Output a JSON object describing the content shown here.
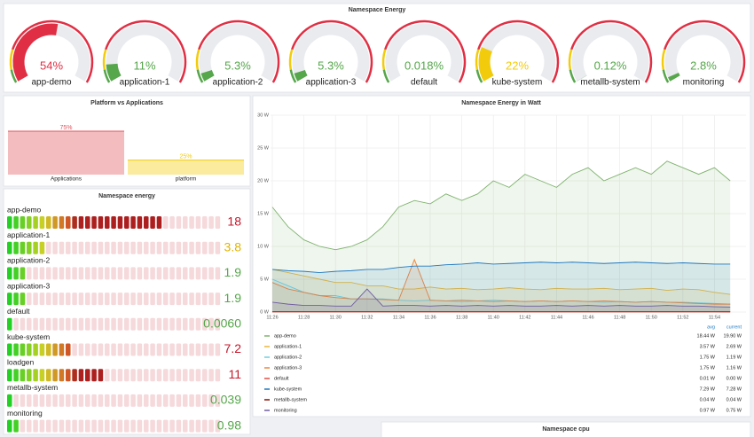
{
  "chart_data": [
    {
      "type": "gauge",
      "title": "Namespace Energy",
      "categories": [
        "app-demo",
        "application-1",
        "application-2",
        "application-3",
        "default",
        "kube-system",
        "metallb-system",
        "monitoring"
      ],
      "values": [
        54,
        11,
        5.3,
        5.3,
        0.018,
        22,
        0.12,
        2.8
      ],
      "value_labels": [
        "54%",
        "11%",
        "5.3%",
        "5.3%",
        "0.018%",
        "22%",
        "0.12%",
        "2.8%"
      ],
      "colors": [
        "#e02f44",
        "#56a64b",
        "#56a64b",
        "#56a64b",
        "#56a64b",
        "#f2cc0c",
        "#56a64b",
        "#56a64b"
      ],
      "ylim": [
        0,
        100
      ]
    },
    {
      "type": "bar",
      "title": "Platform vs Applications",
      "categories": [
        "Applications",
        "platform"
      ],
      "values": [
        75,
        25
      ],
      "value_labels": [
        "75%",
        "25%"
      ],
      "colors": [
        "#e0575f",
        "#f2cc0c"
      ],
      "ylim": [
        0,
        100
      ]
    },
    {
      "type": "bargauge",
      "title": "Namespace energy",
      "categories": [
        "app-demo",
        "application-1",
        "application-2",
        "application-3",
        "default",
        "kube-system",
        "loadgen",
        "metallb-system",
        "monitoring"
      ],
      "values": [
        18,
        3.8,
        1.9,
        1.9,
        0.006,
        7.2,
        11,
        0.039,
        0.98
      ],
      "value_labels": [
        "18",
        "3.8",
        "1.9",
        "1.9",
        "0.0060",
        "7.2",
        "11",
        "0.039",
        "0.98"
      ],
      "colors": [
        "#c4162a",
        "#e0b400",
        "#56a64b",
        "#56a64b",
        "#56a64b",
        "#c4162a",
        "#c4162a",
        "#56a64b",
        "#56a64b"
      ],
      "ylim": [
        0,
        25
      ]
    },
    {
      "type": "line",
      "title": "Namespace Energy in Watt",
      "x": [
        "11:26",
        "11:27",
        "11:28",
        "11:29",
        "11:30",
        "11:31",
        "11:32",
        "11:33",
        "11:34",
        "11:35",
        "11:36",
        "11:37",
        "11:38",
        "11:39",
        "11:40",
        "11:41",
        "11:42",
        "11:43",
        "11:44",
        "11:45",
        "11:46",
        "11:47",
        "11:48",
        "11:49",
        "11:50",
        "11:51",
        "11:52",
        "11:53",
        "11:54",
        "11:55"
      ],
      "xlim": [
        "11:26",
        "11:56"
      ],
      "xticks": [
        "11:26",
        "11:28",
        "11:30",
        "11:32",
        "11:34",
        "11:36",
        "11:38",
        "11:40",
        "11:42",
        "11:44",
        "11:46",
        "11:48",
        "11:50",
        "11:52",
        "11:54"
      ],
      "ylim": [
        0,
        30
      ],
      "yticks": [
        {
          "value": 0,
          "label": "0 W"
        },
        {
          "value": 5,
          "label": "5 W"
        },
        {
          "value": 10,
          "label": "10 W"
        },
        {
          "value": 15,
          "label": "15 W"
        },
        {
          "value": 20,
          "label": "20 W"
        },
        {
          "value": 25,
          "label": "25 W"
        },
        {
          "value": 30,
          "label": "30 W"
        }
      ],
      "grid": true,
      "legend_columns": [
        "avg",
        "current"
      ],
      "series": [
        {
          "name": "app-demo",
          "color": "#7eb26d",
          "stats": [
            "18.44 W",
            "19.90 W"
          ],
          "values": [
            16,
            13,
            11,
            10,
            9.5,
            10,
            11,
            13,
            16,
            17,
            16.5,
            18,
            17,
            18,
            20,
            19,
            21,
            20,
            19,
            21,
            22,
            20,
            21,
            22,
            21,
            23,
            22,
            21,
            22,
            20
          ]
        },
        {
          "name": "application-1",
          "color": "#eab839",
          "stats": [
            "3.57 W",
            "2.69 W"
          ],
          "values": [
            6.5,
            6,
            5.5,
            5,
            4.5,
            4.5,
            4,
            4,
            3.5,
            3.5,
            3.8,
            3.5,
            3.6,
            3.4,
            3.5,
            3.7,
            3.5,
            3.4,
            3.6,
            3.5,
            3.5,
            3.6,
            3.4,
            3.5,
            3.6,
            3.3,
            3.5,
            3.4,
            3,
            2.7
          ]
        },
        {
          "name": "application-2",
          "color": "#6ed0e0",
          "stats": [
            "1.75 W",
            "1.19 W"
          ],
          "values": [
            5,
            4,
            3,
            2.5,
            2.5,
            2,
            2,
            2,
            1.8,
            1.7,
            1.8,
            1.7,
            1.6,
            1.7,
            1.8,
            1.7,
            1.6,
            1.7,
            1.6,
            1.7,
            1.6,
            1.5,
            1.6,
            1.5,
            1.6,
            1.5,
            1.5,
            1.4,
            1.3,
            1.2
          ]
        },
        {
          "name": "application-3",
          "color": "#ef843c",
          "stats": [
            "1.75 W",
            "1.16 W"
          ],
          "values": [
            4.5,
            3.5,
            3,
            2.5,
            2.2,
            2,
            2,
            1.9,
            1.8,
            8,
            1.8,
            1.7,
            1.8,
            1.7,
            1.6,
            1.7,
            1.6,
            1.7,
            1.6,
            1.7,
            1.6,
            1.7,
            1.6,
            1.5,
            1.6,
            1.5,
            1.4,
            1.3,
            1.2,
            1.2
          ]
        },
        {
          "name": "default",
          "color": "#e24d42",
          "stats": [
            "0.01 W",
            "0.00 W"
          ],
          "values": [
            0.01,
            0.01,
            0.01,
            0.01,
            0.01,
            0.01,
            0.01,
            0.01,
            0.01,
            0.01,
            0.01,
            0.01,
            0.01,
            0.01,
            0.01,
            0.01,
            0.01,
            0.01,
            0.01,
            0.01,
            0.01,
            0.01,
            0.01,
            0.01,
            0.01,
            0.01,
            0.01,
            0.01,
            0.01,
            0
          ]
        },
        {
          "name": "kube-system",
          "color": "#1f78c1",
          "stats": [
            "7.29 W",
            "7.28 W"
          ],
          "values": [
            6.5,
            6.3,
            6.2,
            6,
            6.2,
            6.3,
            6.5,
            6.5,
            6.8,
            7,
            7,
            7.2,
            7.3,
            7.5,
            7.3,
            7.4,
            7.5,
            7.6,
            7.5,
            7.6,
            7.5,
            7.4,
            7.5,
            7.6,
            7.5,
            7.4,
            7.5,
            7.4,
            7.3,
            7.3
          ]
        },
        {
          "name": "metallb-system",
          "color": "#890f02",
          "stats": [
            "0.04 W",
            "0.04 W"
          ],
          "values": [
            0.04,
            0.04,
            0.04,
            0.04,
            0.04,
            0.04,
            0.04,
            0.04,
            0.04,
            0.04,
            0.04,
            0.04,
            0.04,
            0.04,
            0.04,
            0.04,
            0.04,
            0.04,
            0.04,
            0.04,
            0.04,
            0.04,
            0.04,
            0.04,
            0.04,
            0.04,
            0.04,
            0.04,
            0.04,
            0.04
          ]
        },
        {
          "name": "monitoring",
          "color": "#705da0",
          "stats": [
            "0.97 W",
            "0.75 W"
          ],
          "values": [
            1.5,
            1.2,
            1,
            1,
            0.9,
            0.9,
            3.5,
            0.9,
            1,
            1,
            0.9,
            1,
            0.9,
            1,
            0.9,
            1,
            0.9,
            0.9,
            1,
            0.9,
            1,
            0.9,
            1,
            0.9,
            0.9,
            1,
            0.9,
            0.9,
            0.8,
            0.75
          ]
        }
      ]
    },
    {
      "type": "line",
      "title": "Namespace cpu"
    }
  ]
}
